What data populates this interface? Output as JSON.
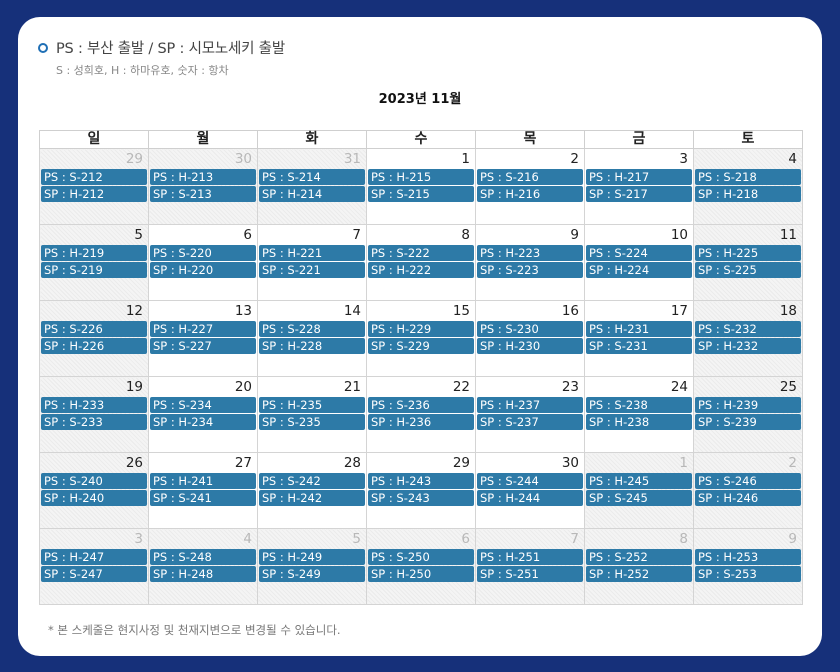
{
  "legend": {
    "title": "PS : 부산 출발 / SP : 시모노세키 출발",
    "subtitle": "S : 성희호, H : 하마유호, 숫자 : 항차"
  },
  "calendar": {
    "month_title": "2023년 11월",
    "weekdays": [
      "일",
      "월",
      "화",
      "수",
      "목",
      "금",
      "토"
    ],
    "weeks": [
      [
        {
          "day": "29",
          "other": true,
          "ps": "PS : S-212",
          "sp": "SP : H-212"
        },
        {
          "day": "30",
          "other": true,
          "ps": "PS : H-213",
          "sp": "SP : S-213"
        },
        {
          "day": "31",
          "other": true,
          "ps": "PS : S-214",
          "sp": "SP : H-214"
        },
        {
          "day": "1",
          "other": false,
          "ps": "PS : H-215",
          "sp": "SP : S-215"
        },
        {
          "day": "2",
          "other": false,
          "ps": "PS : S-216",
          "sp": "SP : H-216"
        },
        {
          "day": "3",
          "other": false,
          "ps": "PS : H-217",
          "sp": "SP : S-217"
        },
        {
          "day": "4",
          "other": false,
          "ps": "PS : S-218",
          "sp": "SP : H-218"
        }
      ],
      [
        {
          "day": "5",
          "other": false,
          "ps": "PS : H-219",
          "sp": "SP : S-219"
        },
        {
          "day": "6",
          "other": false,
          "ps": "PS : S-220",
          "sp": "SP : H-220"
        },
        {
          "day": "7",
          "other": false,
          "ps": "PS : H-221",
          "sp": "SP : S-221"
        },
        {
          "day": "8",
          "other": false,
          "ps": "PS : S-222",
          "sp": "SP : H-222"
        },
        {
          "day": "9",
          "other": false,
          "ps": "PS : H-223",
          "sp": "SP : S-223"
        },
        {
          "day": "10",
          "other": false,
          "ps": "PS : S-224",
          "sp": "SP : H-224"
        },
        {
          "day": "11",
          "other": false,
          "ps": "PS : H-225",
          "sp": "SP : S-225"
        }
      ],
      [
        {
          "day": "12",
          "other": false,
          "ps": "PS : S-226",
          "sp": "SP : H-226"
        },
        {
          "day": "13",
          "other": false,
          "ps": "PS : H-227",
          "sp": "SP : S-227"
        },
        {
          "day": "14",
          "other": false,
          "ps": "PS : S-228",
          "sp": "SP : H-228"
        },
        {
          "day": "15",
          "other": false,
          "ps": "PS : H-229",
          "sp": "SP : S-229"
        },
        {
          "day": "16",
          "other": false,
          "ps": "PS : S-230",
          "sp": "SP : H-230"
        },
        {
          "day": "17",
          "other": false,
          "ps": "PS : H-231",
          "sp": "SP : S-231"
        },
        {
          "day": "18",
          "other": false,
          "ps": "PS : S-232",
          "sp": "SP : H-232"
        }
      ],
      [
        {
          "day": "19",
          "other": false,
          "ps": "PS : H-233",
          "sp": "SP : S-233"
        },
        {
          "day": "20",
          "other": false,
          "ps": "PS : S-234",
          "sp": "SP : H-234"
        },
        {
          "day": "21",
          "other": false,
          "ps": "PS : H-235",
          "sp": "SP : S-235"
        },
        {
          "day": "22",
          "other": false,
          "ps": "PS : S-236",
          "sp": "SP : H-236"
        },
        {
          "day": "23",
          "other": false,
          "ps": "PS : H-237",
          "sp": "SP : S-237"
        },
        {
          "day": "24",
          "other": false,
          "ps": "PS : S-238",
          "sp": "SP : H-238"
        },
        {
          "day": "25",
          "other": false,
          "ps": "PS : H-239",
          "sp": "SP : S-239"
        }
      ],
      [
        {
          "day": "26",
          "other": false,
          "ps": "PS : S-240",
          "sp": "SP : H-240"
        },
        {
          "day": "27",
          "other": false,
          "ps": "PS : H-241",
          "sp": "SP : S-241"
        },
        {
          "day": "28",
          "other": false,
          "ps": "PS : S-242",
          "sp": "SP : H-242"
        },
        {
          "day": "29",
          "other": false,
          "ps": "PS : H-243",
          "sp": "SP : S-243"
        },
        {
          "day": "30",
          "other": false,
          "ps": "PS : S-244",
          "sp": "SP : H-244"
        },
        {
          "day": "1",
          "other": true,
          "ps": "PS : H-245",
          "sp": "SP : S-245"
        },
        {
          "day": "2",
          "other": true,
          "ps": "PS : S-246",
          "sp": "SP : H-246"
        }
      ],
      [
        {
          "day": "3",
          "other": true,
          "ps": "PS : H-247",
          "sp": "SP : S-247"
        },
        {
          "day": "4",
          "other": true,
          "ps": "PS : S-248",
          "sp": "SP : H-248"
        },
        {
          "day": "5",
          "other": true,
          "ps": "PS : H-249",
          "sp": "SP : S-249"
        },
        {
          "day": "6",
          "other": true,
          "ps": "PS : S-250",
          "sp": "SP : H-250"
        },
        {
          "day": "7",
          "other": true,
          "ps": "PS : H-251",
          "sp": "SP : S-251"
        },
        {
          "day": "8",
          "other": true,
          "ps": "PS : S-252",
          "sp": "SP : H-252"
        },
        {
          "day": "9",
          "other": true,
          "ps": "PS : H-253",
          "sp": "SP : S-253"
        }
      ]
    ]
  },
  "footnote": "* 본 스케줄은 현지사정 및 천재지변으로 변경될 수 있습니다.",
  "colors": {
    "page_background": "#16307a",
    "event_bar": "#2d7aa7",
    "bullet": "#1f6fb5"
  }
}
